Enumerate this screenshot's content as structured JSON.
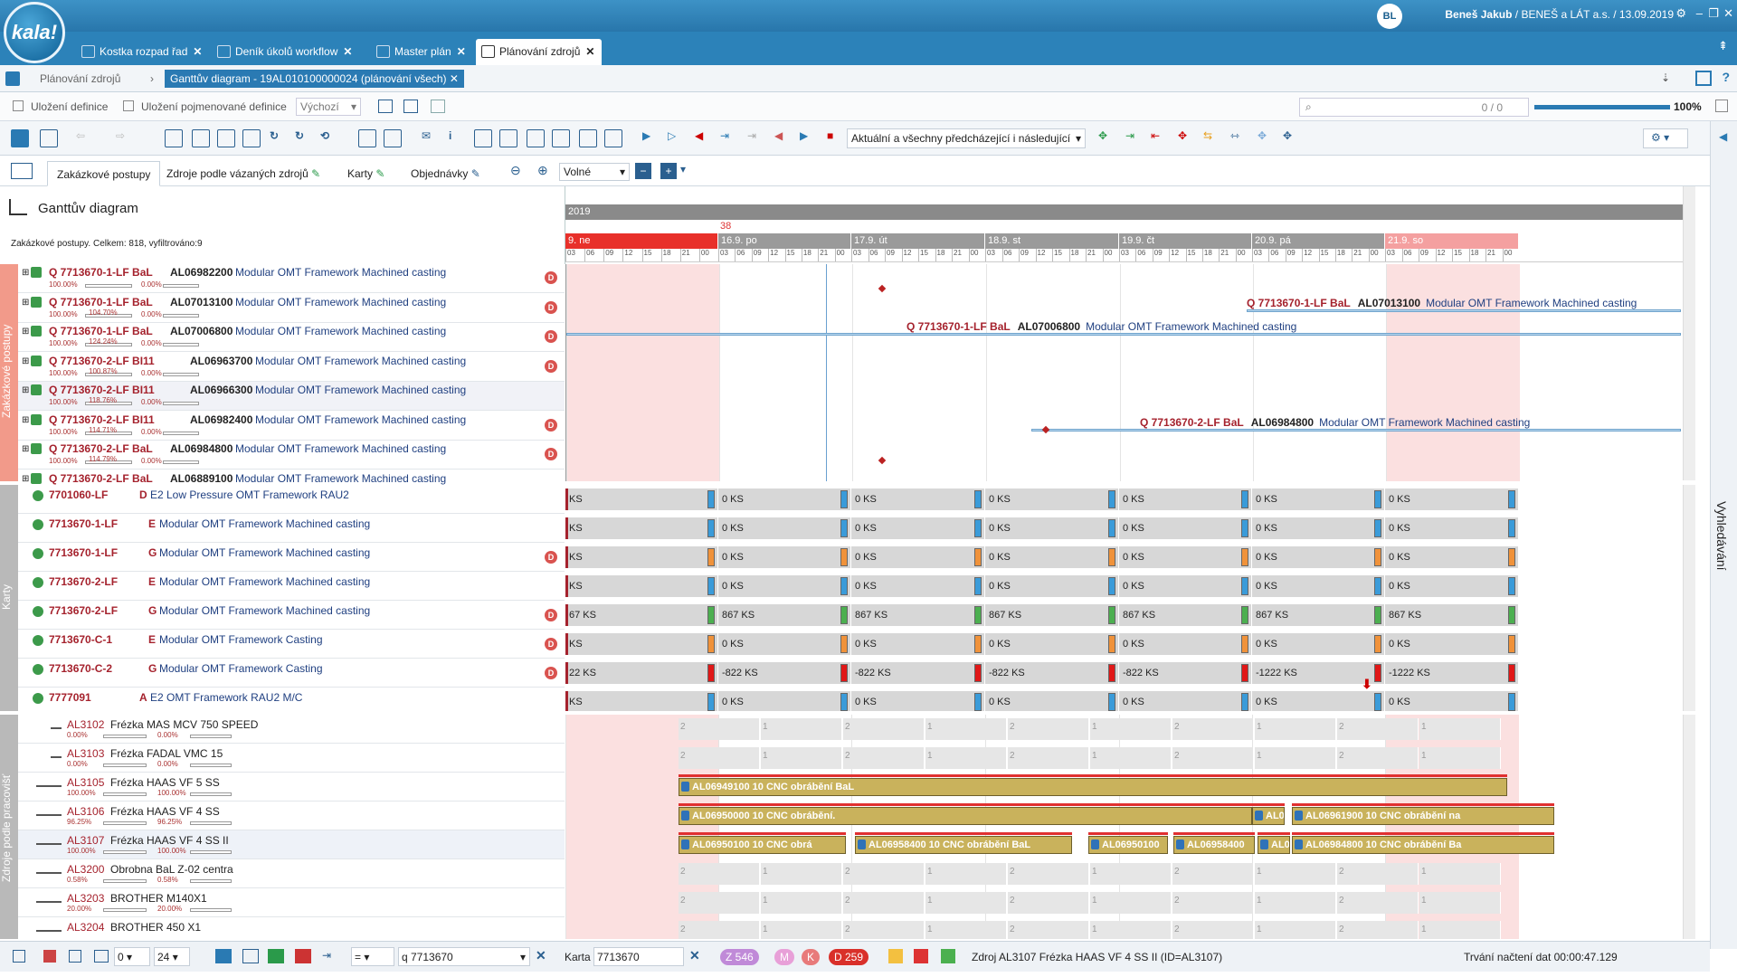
{
  "app": {
    "logo_text": "kala!",
    "user": "Beneš Jakub",
    "company": "BENEŠ a LÁT a.s. / 13.09.2019",
    "avatar_text": "BL"
  },
  "tabs": [
    {
      "label": "Kostka rozpad řad"
    },
    {
      "label": "Deník úkolů workflow"
    },
    {
      "label": "Master plán"
    },
    {
      "label": "Plánování zdrojů"
    }
  ],
  "breadcrumb": {
    "parent": "Plánování zdrojů",
    "current": "Ganttův diagram - 19AL010100000024 (plánování všech)"
  },
  "defbar": {
    "save": "Uložení definice",
    "save_named": "Uložení pojmenované definice",
    "default": "Výchozí",
    "search_count": "0 / 0",
    "zoom": "100%"
  },
  "toolbar": {
    "filter_select": "Aktuální a všechny předcházející i následující"
  },
  "viewtabs": [
    "Zakázkové postupy",
    "Zdroje podle vázaných zdrojů",
    "Karty",
    "Objednávky"
  ],
  "zoom_mode": "Volné",
  "gantt": {
    "title": "Ganttův diagram",
    "summary": "Zakázkové postupy. Celkem: 818, vyfiltrováno:9",
    "year": "2019",
    "week": "38",
    "days": [
      "9. ne",
      "16.9. po",
      "17.9. út",
      "18.9. st",
      "19.9. čt",
      "20.9. pá",
      "21.9. so"
    ],
    "hours": [
      "03",
      "06",
      "09",
      "12",
      "15",
      "18",
      "21",
      "00"
    ]
  },
  "section_labels": {
    "orders": "Zakázkové postupy",
    "cards": "Karty",
    "resources": "Zdroje podle pracovišť",
    "search": "Vyhledávání"
  },
  "orders": [
    {
      "code": "Q 7713670-1-LF BaL",
      "id": "AL06982200",
      "name": "Modular OMT Framework Machined casting",
      "p1": "100.00%",
      "p2": "0.00%",
      "d": true
    },
    {
      "code": "Q 7713670-1-LF BaL",
      "id": "AL07013100",
      "name": "Modular OMT Framework Machined casting",
      "p1": "100.00%",
      "p2": "0.00%",
      "pr": "104.70%",
      "d": true
    },
    {
      "code": "Q 7713670-1-LF BaL",
      "id": "AL07006800",
      "name": "Modular OMT Framework Machined casting",
      "p1": "100.00%",
      "p2": "0.00%",
      "pr": "124.24%",
      "d": true
    },
    {
      "code": "Q 7713670-2-LF BI11",
      "id": "AL06963700",
      "name": "Modular OMT Framework Machined casting",
      "p1": "100.00%",
      "p2": "0.00%",
      "pr": "100.87%",
      "d": true
    },
    {
      "code": "Q 7713670-2-LF BI11",
      "id": "AL06966300",
      "name": "Modular OMT Framework Machined casting",
      "p1": "100.00%",
      "p2": "0.00%",
      "pr": "118.76%",
      "d": false
    },
    {
      "code": "Q 7713670-2-LF BI11",
      "id": "AL06982400",
      "name": "Modular OMT Framework Machined casting",
      "p1": "100.00%",
      "p2": "0.00%",
      "pr": "114.71%",
      "d": true
    },
    {
      "code": "Q 7713670-2-LF BaL",
      "id": "AL06984800",
      "name": "Modular OMT Framework Machined casting",
      "p1": "100.00%",
      "p2": "0.00%",
      "pr": "114.79%",
      "d": true
    },
    {
      "code": "Q 7713670-2-LF BaL",
      "id": "AL06889100",
      "name": "Modular OMT Framework Machined casting",
      "p1": "",
      "p2": "",
      "d": false
    }
  ],
  "order_bars": [
    {
      "label_code": "Q 7713670-1-LF BaL",
      "label_id": "AL07013100",
      "label_name": "Modular OMT Framework Machined casting"
    },
    {
      "label_code": "Q 7713670-1-LF BaL",
      "label_id": "AL07006800",
      "label_name": "Modular OMT Framework Machined casting"
    },
    {
      "label_code": "Q 7713670-2-LF BaL",
      "label_id": "AL06984800",
      "label_name": "Modular OMT Framework Machined casting"
    }
  ],
  "cards": [
    {
      "code": "7701060-LF",
      "type": "D",
      "name": "E2 Low Pressure OMT Framework RAU2",
      "d": false,
      "vals": [
        "KS",
        "0 KS",
        "0 KS",
        "0 KS",
        "0 KS",
        "0 KS",
        "0 KS"
      ],
      "color": "#3a9bd9"
    },
    {
      "code": "7713670-1-LF",
      "type": "E",
      "name": "Modular OMT Framework Machined casting",
      "d": false,
      "vals": [
        "KS",
        "0 KS",
        "0 KS",
        "0 KS",
        "0 KS",
        "0 KS",
        "0 KS"
      ],
      "color": "#3a9bd9"
    },
    {
      "code": "7713670-1-LF",
      "type": "G",
      "name": "Modular OMT Framework Machined casting",
      "d": true,
      "vals": [
        "KS",
        "0 KS",
        "0 KS",
        "0 KS",
        "0 KS",
        "0 KS",
        "0 KS"
      ],
      "color": "#f0923a"
    },
    {
      "code": "7713670-2-LF",
      "type": "E",
      "name": "Modular OMT Framework Machined casting",
      "d": false,
      "vals": [
        "KS",
        "0 KS",
        "0 KS",
        "0 KS",
        "0 KS",
        "0 KS",
        "0 KS"
      ],
      "color": "#3a9bd9"
    },
    {
      "code": "7713670-2-LF",
      "type": "G",
      "name": "Modular OMT Framework Machined casting",
      "d": true,
      "vals": [
        "67 KS",
        "867 KS",
        "867 KS",
        "867 KS",
        "867 KS",
        "867 KS",
        "867 KS"
      ],
      "color": "#4caf50"
    },
    {
      "code": "7713670-C-1",
      "type": "E",
      "name": "Modular OMT Framework Casting",
      "d": true,
      "vals": [
        "KS",
        "0 KS",
        "0 KS",
        "0 KS",
        "0 KS",
        "0 KS",
        "0 KS"
      ],
      "color": "#f0923a"
    },
    {
      "code": "7713670-C-2",
      "type": "G",
      "name": "Modular OMT Framework Casting",
      "d": true,
      "vals": [
        "22 KS",
        "-822 KS",
        "-822 KS",
        "-822 KS",
        "-822 KS",
        "-1222 KS",
        "-1222 KS"
      ],
      "color": "#e01818"
    },
    {
      "code": "7777091",
      "type": "A",
      "name": "E2 OMT Framework RAU2 M/C",
      "d": false,
      "vals": [
        "KS",
        "0 KS",
        "0 KS",
        "0 KS",
        "0 KS",
        "0 KS",
        "0 KS"
      ],
      "color": "#3a9bd9"
    }
  ],
  "resources": [
    {
      "code": "AL3102",
      "name": "Frézka MAS MCV 750 SPEED",
      "p1": "0.00%",
      "p2": "0.00%"
    },
    {
      "code": "AL3103",
      "name": "Frézka FADAL VMC 15",
      "p1": "0.00%",
      "p2": "0.00%"
    },
    {
      "code": "AL3105",
      "name": "Frézka HAAS VF 5 SS",
      "p1": "100.00%",
      "p2": "100.00%"
    },
    {
      "code": "AL3106",
      "name": "Frézka HAAS VF 4 SS",
      "p1": "96.25%",
      "p2": "96.25%"
    },
    {
      "code": "AL3107",
      "name": "Frézka HAAS VF 4 SS II",
      "p1": "100.00%",
      "p2": "100.00%"
    },
    {
      "code": "AL3200",
      "name": "Obrobna BaL Z-02 centra",
      "p1": "0.58%",
      "p2": "0.58%"
    },
    {
      "code": "AL3203",
      "name": "BROTHER M140X1",
      "p1": "20.00%",
      "p2": "20.00%"
    },
    {
      "code": "AL3204",
      "name": "BROTHER 450 X1",
      "p1": "",
      "p2": ""
    }
  ],
  "jobs": [
    {
      "row": 2,
      "text": "AL06949100   10   CNC obrábění BaL"
    },
    {
      "row": 3,
      "text": "AL06950000   10   CNC obrábění."
    },
    {
      "row": 3,
      "text": "AL06"
    },
    {
      "row": 3,
      "text": "AL06961900   10   CNC obrábění na"
    },
    {
      "row": 4,
      "text": "AL06950100   10   CNC obrá"
    },
    {
      "row": 4,
      "text": "AL06958400   10   CNC obrábění BaL"
    },
    {
      "row": 4,
      "text": "AL06950100"
    },
    {
      "row": 4,
      "text": "AL06958400"
    },
    {
      "row": 4,
      "text": "AL06"
    },
    {
      "row": 4,
      "text": "AL06984800   10   CNC obrábění Ba"
    }
  ],
  "status": {
    "num1": "0",
    "num2": "24",
    "op": "=",
    "filter": "q 7713670",
    "karta_label": "Karta",
    "karta": "7713670",
    "z": "Z 546",
    "m": "M",
    "k": "K",
    "d": "D 259",
    "resource": "Zdroj AL3107 Frézka HAAS VF 4 SS II (ID=AL3107)",
    "time": "Trvání načtení dat 00:00:47.129"
  }
}
